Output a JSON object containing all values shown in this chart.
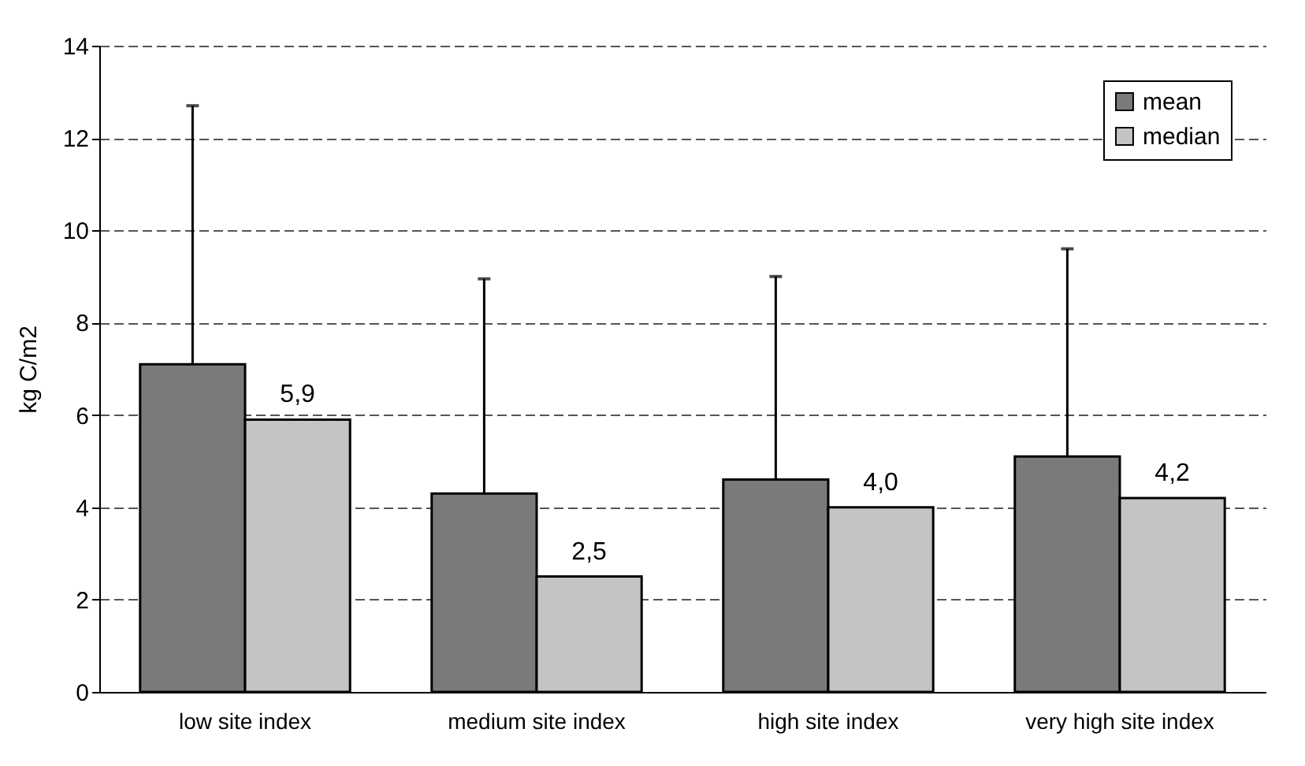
{
  "chart_data": {
    "type": "bar",
    "ylabel": "kg C/m2",
    "categories": [
      "low site index",
      "medium site index",
      "high site index",
      "very high site index"
    ],
    "series": [
      {
        "name": "mean",
        "color": "#7a7a7a",
        "values": [
          7.1,
          4.3,
          4.6,
          5.1
        ],
        "errors": [
          [
            7.1,
            12.7
          ],
          [
            4.3,
            8.95
          ],
          [
            4.6,
            9.0
          ],
          [
            5.1,
            9.6
          ]
        ]
      },
      {
        "name": "median",
        "color": "#c4c4c4",
        "values": [
          5.9,
          2.5,
          4.0,
          4.2
        ],
        "value_labels": [
          "5,9",
          "2,5",
          "4,0",
          "4,2"
        ]
      }
    ],
    "ylim": [
      0,
      14
    ],
    "yticks": [
      0,
      2,
      4,
      6,
      8,
      10,
      12,
      14
    ],
    "grid": "y",
    "legend": "top right"
  }
}
